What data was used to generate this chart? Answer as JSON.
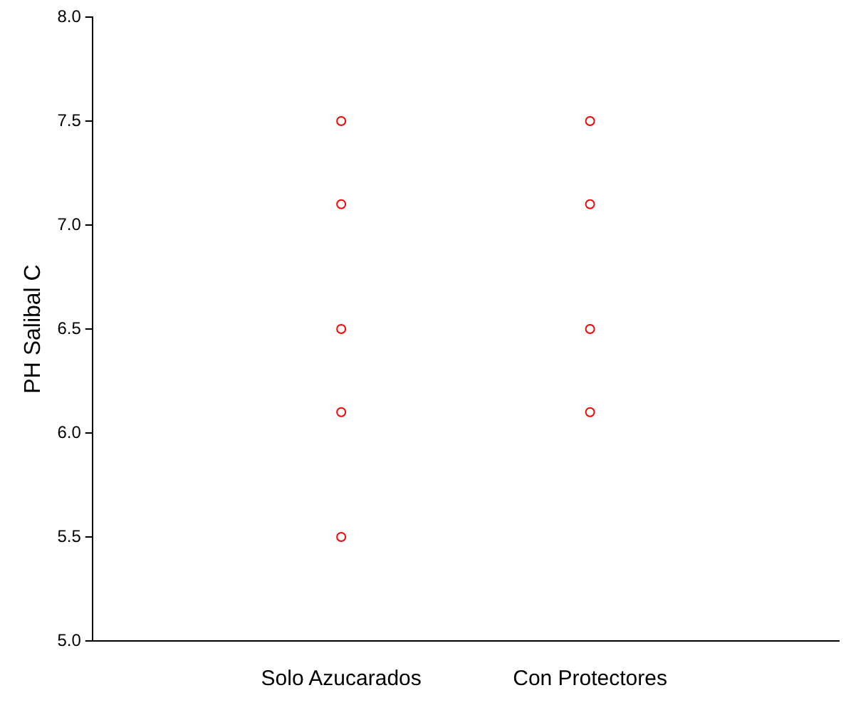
{
  "chart_data": {
    "type": "scatter",
    "categories": [
      "Solo Azucarados",
      "Con Protectores"
    ],
    "ylabel": "PH Salibal C",
    "ylim": [
      5.0,
      8.0
    ],
    "yticks": [
      {
        "value": 5,
        "label": "5.0"
      },
      5.5,
      {
        "value": 6,
        "label": "6.0"
      },
      6.5,
      {
        "value": 7,
        "label": "7.0"
      },
      7.5,
      {
        "value": 8,
        "label": "8.0"
      }
    ],
    "grid": false,
    "legend": false,
    "marker": "circle",
    "series": [
      {
        "color": "#ff0000",
        "x": [
          "Solo Azucarados",
          "Solo Azucarados",
          "Solo Azucarados",
          "Solo Azucarados",
          "Solo Azucarados",
          "Con Protectores",
          "Con Protectores",
          "Con Protectores",
          "Con Protectores"
        ],
        "values": [
          7.5,
          7.1,
          6.5,
          6.1,
          5.5,
          7.5,
          7.1,
          6.5,
          6.1
        ]
      }
    ]
  }
}
